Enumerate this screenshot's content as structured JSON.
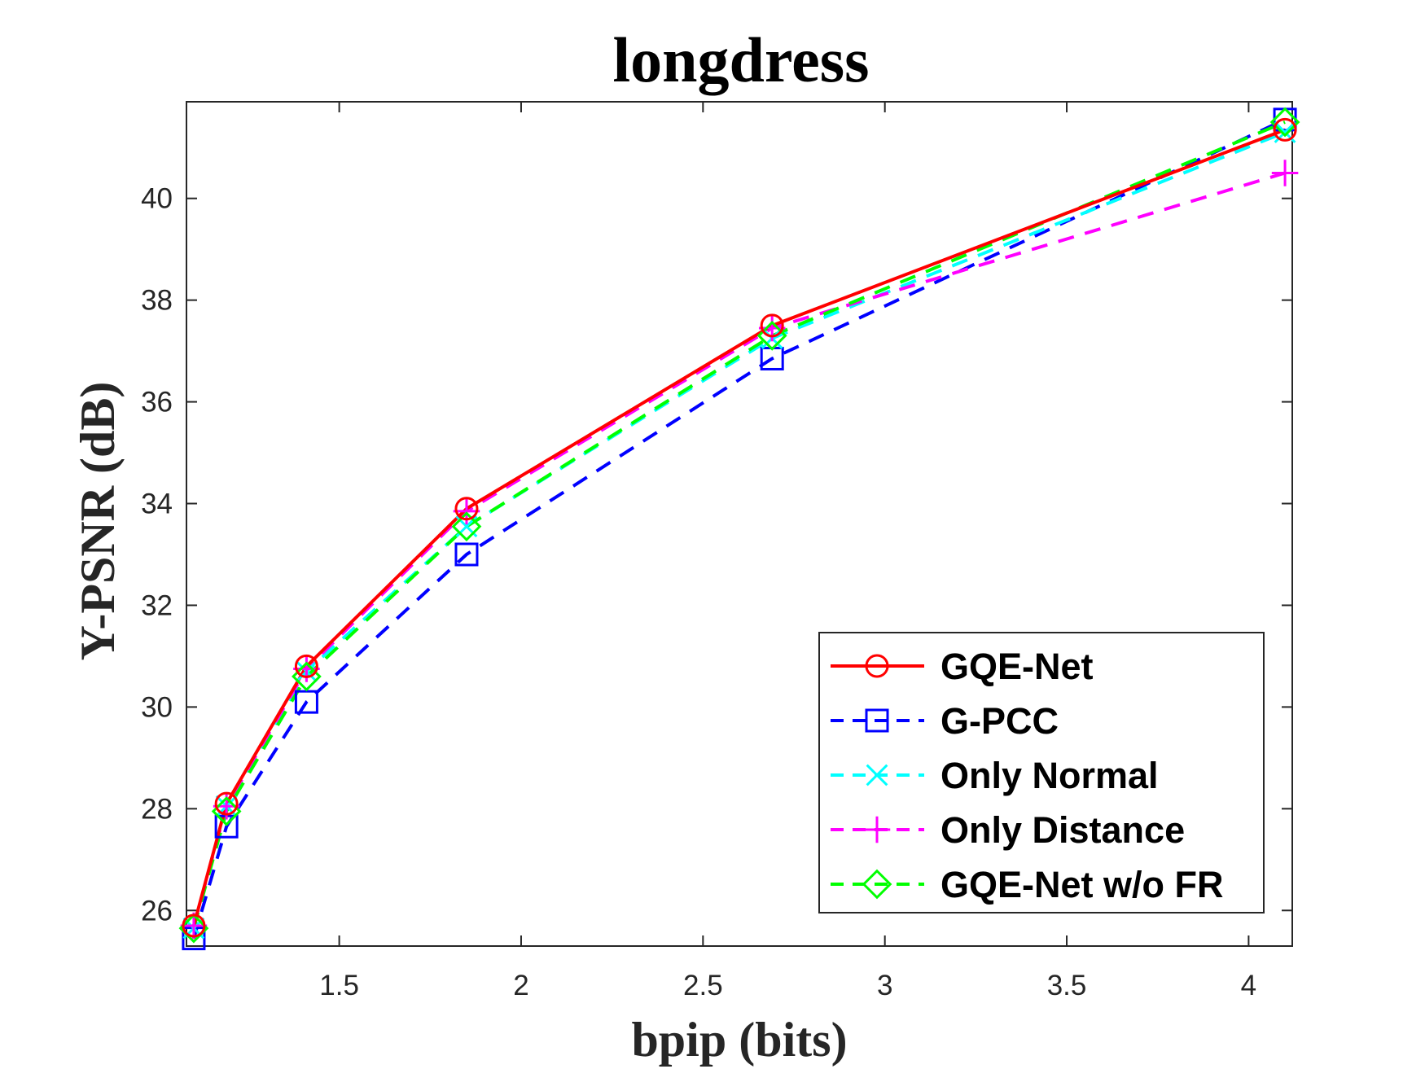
{
  "chart_data": {
    "type": "line",
    "title": "longdress",
    "xlabel": "bpip (bits)",
    "ylabel": "Y-PSNR (dB)",
    "xlim": [
      1.08,
      4.12
    ],
    "ylim": [
      25.3,
      41.9
    ],
    "xticks": [
      1.5,
      2,
      2.5,
      3,
      3.5,
      4
    ],
    "xtick_labels": [
      "1.5",
      "2",
      "2.5",
      "3",
      "3.5",
      "4"
    ],
    "yticks": [
      26,
      28,
      30,
      32,
      34,
      36,
      38,
      40
    ],
    "ytick_labels": [
      "26",
      "28",
      "30",
      "32",
      "34",
      "36",
      "38",
      "40"
    ],
    "legend_position": "bottom-right",
    "series": [
      {
        "name": "GQE-Net",
        "color": "#ff0000",
        "dash": "solid",
        "marker": "circle",
        "x": [
          1.1,
          1.19,
          1.41,
          1.85,
          2.69,
          4.1
        ],
        "y": [
          25.7,
          28.1,
          30.8,
          33.9,
          37.5,
          41.35
        ]
      },
      {
        "name": "G-PCC",
        "color": "#0000ff",
        "dash": "dashed",
        "marker": "square",
        "x": [
          1.1,
          1.19,
          1.41,
          1.85,
          2.69,
          4.1
        ],
        "y": [
          25.45,
          27.65,
          30.1,
          33.0,
          36.85,
          41.55
        ]
      },
      {
        "name": "Only Normal",
        "color": "#00ffff",
        "dash": "dashed",
        "marker": "x",
        "x": [
          1.1,
          1.19,
          1.41,
          1.85,
          2.69,
          4.1
        ],
        "y": [
          25.65,
          28.05,
          30.7,
          33.55,
          37.25,
          41.3
        ]
      },
      {
        "name": "Only Distance",
        "color": "#ff00ff",
        "dash": "dashed",
        "marker": "plus",
        "x": [
          1.1,
          1.19,
          1.41,
          1.85,
          2.69,
          4.1
        ],
        "y": [
          25.7,
          28.05,
          30.75,
          33.85,
          37.45,
          40.5
        ]
      },
      {
        "name": "GQE-Net w/o FR",
        "color": "#00ff00",
        "dash": "dashed",
        "marker": "diamond",
        "x": [
          1.1,
          1.19,
          1.41,
          1.85,
          2.69,
          4.1
        ],
        "y": [
          25.65,
          27.95,
          30.6,
          33.55,
          37.3,
          41.5
        ]
      }
    ]
  }
}
